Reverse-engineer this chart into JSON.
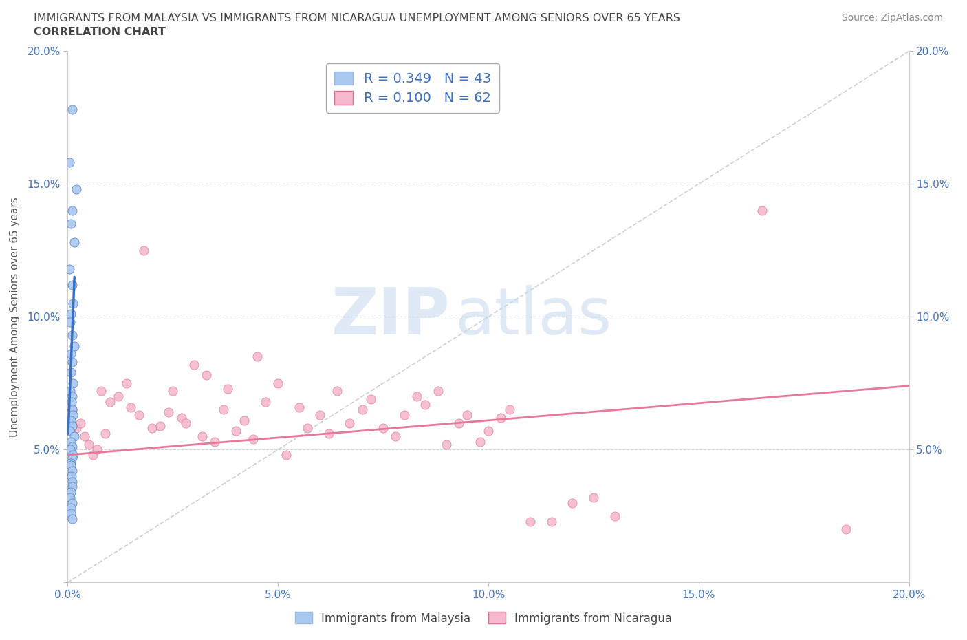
{
  "title_line1": "IMMIGRANTS FROM MALAYSIA VS IMMIGRANTS FROM NICARAGUA UNEMPLOYMENT AMONG SENIORS OVER 65 YEARS",
  "title_line2": "CORRELATION CHART",
  "source_text": "Source: ZipAtlas.com",
  "ylabel": "Unemployment Among Seniors over 65 years",
  "xlim": [
    0.0,
    0.2
  ],
  "ylim": [
    0.0,
    0.2
  ],
  "r_malaysia": 0.349,
  "n_malaysia": 43,
  "r_nicaragua": 0.1,
  "n_nicaragua": 62,
  "malaysia_color": "#a8c8f0",
  "nicaragua_color": "#f5b8ce",
  "malaysia_line_color": "#3a6fc4",
  "nicaragua_line_color": "#e8789a",
  "diagonal_color": "#c8d0dc",
  "watermark_zip": "ZIP",
  "watermark_atlas": "atlas",
  "legend_label_malaysia": "Immigrants from Malaysia",
  "legend_label_nicaragua": "Immigrants from Nicaragua",
  "mal_x": [
    0.001,
    0.0005,
    0.002,
    0.0008,
    0.001,
    0.0015,
    0.0005,
    0.001,
    0.0012,
    0.0008,
    0.0006,
    0.001,
    0.0015,
    0.0007,
    0.001,
    0.0008,
    0.0012,
    0.0006,
    0.001,
    0.0009,
    0.001,
    0.0013,
    0.0007,
    0.001,
    0.0005,
    0.0015,
    0.0008,
    0.001,
    0.0006,
    0.0012,
    0.001,
    0.0008,
    0.0007,
    0.001,
    0.0009,
    0.0011,
    0.001,
    0.0008,
    0.0006,
    0.001,
    0.0008,
    0.0007,
    0.001
  ],
  "mal_y": [
    0.178,
    0.158,
    0.148,
    0.135,
    0.14,
    0.128,
    0.118,
    0.112,
    0.105,
    0.101,
    0.098,
    0.093,
    0.089,
    0.086,
    0.083,
    0.079,
    0.075,
    0.072,
    0.07,
    0.068,
    0.065,
    0.063,
    0.061,
    0.059,
    0.057,
    0.055,
    0.053,
    0.051,
    0.05,
    0.048,
    0.047,
    0.045,
    0.044,
    0.042,
    0.04,
    0.038,
    0.036,
    0.034,
    0.032,
    0.03,
    0.028,
    0.026,
    0.024
  ],
  "nic_x": [
    0.001,
    0.002,
    0.003,
    0.004,
    0.005,
    0.006,
    0.007,
    0.008,
    0.009,
    0.01,
    0.012,
    0.014,
    0.015,
    0.017,
    0.018,
    0.02,
    0.022,
    0.024,
    0.025,
    0.027,
    0.028,
    0.03,
    0.032,
    0.033,
    0.035,
    0.037,
    0.038,
    0.04,
    0.042,
    0.044,
    0.045,
    0.047,
    0.05,
    0.052,
    0.055,
    0.057,
    0.06,
    0.062,
    0.064,
    0.067,
    0.07,
    0.072,
    0.075,
    0.078,
    0.08,
    0.083,
    0.085,
    0.088,
    0.09,
    0.093,
    0.095,
    0.098,
    0.1,
    0.103,
    0.105,
    0.11,
    0.115,
    0.12,
    0.125,
    0.13,
    0.165,
    0.185
  ],
  "nic_y": [
    0.065,
    0.058,
    0.06,
    0.055,
    0.052,
    0.048,
    0.05,
    0.072,
    0.056,
    0.068,
    0.07,
    0.075,
    0.066,
    0.063,
    0.125,
    0.058,
    0.059,
    0.064,
    0.072,
    0.062,
    0.06,
    0.082,
    0.055,
    0.078,
    0.053,
    0.065,
    0.073,
    0.057,
    0.061,
    0.054,
    0.085,
    0.068,
    0.075,
    0.048,
    0.066,
    0.058,
    0.063,
    0.056,
    0.072,
    0.06,
    0.065,
    0.069,
    0.058,
    0.055,
    0.063,
    0.07,
    0.067,
    0.072,
    0.052,
    0.06,
    0.063,
    0.053,
    0.057,
    0.062,
    0.065,
    0.023,
    0.023,
    0.03,
    0.032,
    0.025,
    0.14,
    0.02
  ],
  "mal_trend_x": [
    0.0001,
    0.0016
  ],
  "mal_trend_y": [
    0.056,
    0.115
  ],
  "nic_trend_x": [
    0.0,
    0.2
  ],
  "nic_trend_y": [
    0.048,
    0.074
  ]
}
